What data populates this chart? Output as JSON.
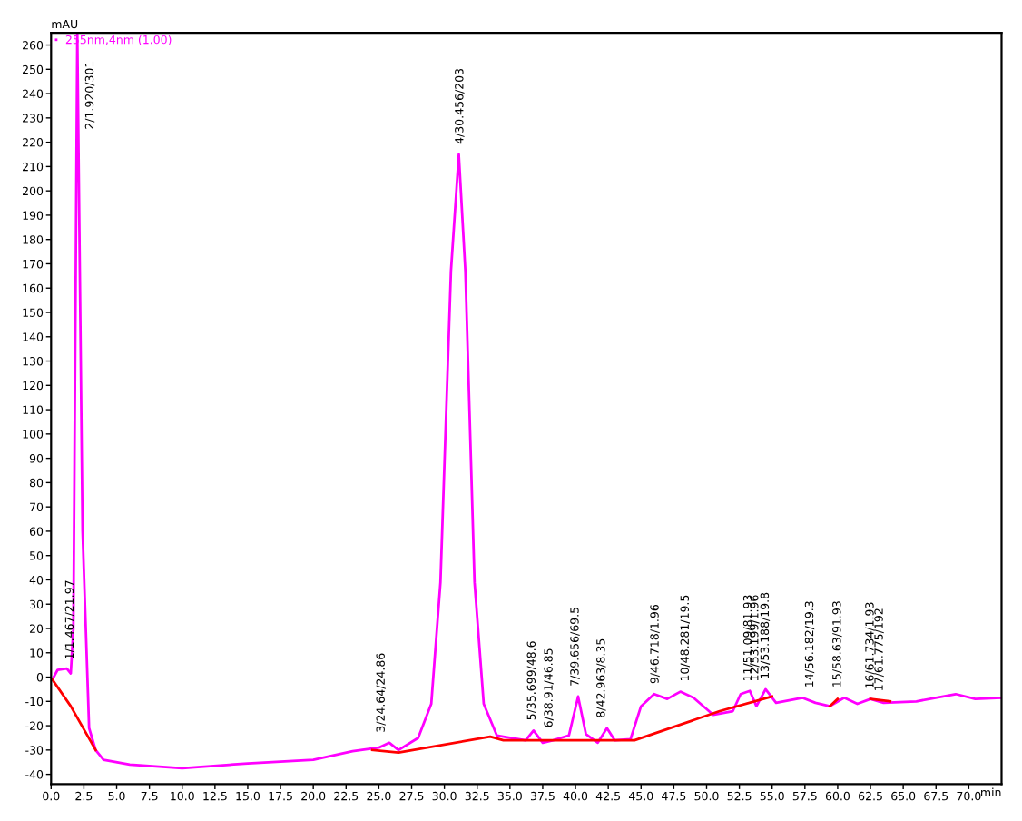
{
  "chart_data": {
    "type": "line",
    "ylabel": "mAU",
    "xlabel": "min",
    "xlim": [
      0,
      72.5
    ],
    "ylim": [
      -44,
      265
    ],
    "xticks": [
      {
        "value": 0,
        "label": "0.0"
      },
      2.5,
      {
        "value": 5,
        "label": "5.0"
      },
      7.5,
      {
        "value": 10,
        "label": "10.0"
      },
      12.5,
      {
        "value": 15,
        "label": "15.0"
      },
      17.5,
      {
        "value": 20,
        "label": "20.0"
      },
      22.5,
      {
        "value": 25,
        "label": "25.0"
      },
      27.5,
      {
        "value": 30,
        "label": "30.0"
      },
      32.5,
      {
        "value": 35,
        "label": "35.0"
      },
      37.5,
      {
        "value": 40,
        "label": "40.0"
      },
      42.5,
      {
        "value": 45,
        "label": "45.0"
      },
      47.5,
      {
        "value": 50,
        "label": "50.0"
      },
      52.5,
      {
        "value": 55,
        "label": "55.0"
      },
      57.5,
      {
        "value": 60,
        "label": "60.0"
      },
      62.5,
      {
        "value": 65,
        "label": "65.0"
      },
      67.5,
      {
        "value": 70,
        "label": "70.0"
      }
    ],
    "yticks": [
      -40,
      -30,
      -20,
      -10,
      0,
      10,
      20,
      30,
      40,
      50,
      60,
      70,
      80,
      90,
      100,
      110,
      120,
      130,
      140,
      150,
      160,
      170,
      180,
      190,
      200,
      210,
      220,
      230,
      240,
      250,
      260
    ],
    "grid": false,
    "legend": "top left",
    "series": [
      {
        "name": "255nm,4nm (1.00)",
        "color": "#ff00ff",
        "x": [
          0.1,
          0.5,
          1.2,
          1.5,
          1.7,
          2.0,
          2.4,
          2.9,
          3.4,
          4,
          6,
          10,
          15,
          20,
          23,
          25,
          25.8,
          26.5,
          28,
          29,
          29.7,
          30.5,
          31.1,
          31.6,
          32.3,
          33,
          34,
          35,
          36.2,
          36.8,
          37.5,
          38.3,
          39.5,
          40.2,
          40.8,
          41.7,
          42.4,
          43,
          44.2,
          45,
          46,
          47,
          48,
          49,
          50.5,
          52,
          52.6,
          53.3,
          53.8,
          54.5,
          55.3,
          57.3,
          58.3,
          59.4,
          60.5,
          61.5,
          62.5,
          63.5,
          66,
          69,
          70.5,
          72.5
        ],
        "values": [
          -1,
          3,
          3.5,
          1.5,
          20,
          265,
          60,
          -21,
          -30,
          -34,
          -36,
          -37.5,
          -35.5,
          -34,
          -30.5,
          -29,
          -27,
          -30,
          -25,
          -11,
          39,
          167,
          215,
          167,
          39,
          -11,
          -24,
          -25,
          -26,
          -22,
          -27,
          -26,
          -24,
          -8,
          -23.5,
          -27,
          -21,
          -26,
          -25.5,
          -12,
          -7,
          -9,
          -6,
          -8.5,
          -15.5,
          -14,
          -7,
          -5.7,
          -12,
          -5,
          -10.6,
          -8.5,
          -10.6,
          -12,
          -8.5,
          -11,
          -9,
          -10.6,
          -10,
          -7,
          -9,
          -8.5
        ]
      },
      {
        "color": "#ff0000",
        "x": [
          0.1,
          1.5,
          3.4,
          3.5,
          24.5,
          26.5,
          33.5,
          34.5,
          44.5,
          51,
          55,
          55.5,
          59.4,
          60,
          61.5,
          62.5,
          64
        ],
        "values": [
          -1,
          -12,
          -30,
          null,
          -30,
          -31,
          -24.5,
          -26,
          -26,
          -14,
          -8,
          null,
          -12,
          -9,
          null,
          -9,
          -10
        ]
      }
    ],
    "annotations": [
      {
        "text": "1/1.467/21.97",
        "x": 1.47,
        "y": 3
      },
      {
        "text": "2/1.920/301",
        "x": 2.0,
        "y": 265
      },
      {
        "text": "3/24.64/24.86",
        "x": 25.2,
        "y": -27
      },
      {
        "text": "4/30.456/203",
        "x": 31.2,
        "y": 215
      },
      {
        "text": "5/35.699/48.6",
        "x": 36.7,
        "y": -22
      },
      {
        "text": "6/38.91/46.85",
        "x": 38.0,
        "y": -25
      },
      {
        "text": "7/39.656/69.5",
        "x": 40.0,
        "y": -8
      },
      {
        "text": "8/42.963/8.35",
        "x": 42.0,
        "y": -21
      },
      {
        "text": "9/46.718/1.96",
        "x": 46.1,
        "y": -7
      },
      {
        "text": "10/48.281/19.5",
        "x": 48.4,
        "y": -6
      },
      {
        "text": "11/51.09/81.93",
        "x": 53.2,
        "y": -6
      },
      {
        "text": "12/53.199/1.96",
        "x": 53.7,
        "y": -6
      },
      {
        "text": "13/53.188/19.8",
        "x": 54.5,
        "y": -5
      },
      {
        "text": "14/56.182/19.3",
        "x": 57.9,
        "y": -8.5
      },
      {
        "text": "15/58.63/91.93",
        "x": 60.0,
        "y": -8.5
      },
      {
        "text": "16/61.734/1.93",
        "x": 62.5,
        "y": -9
      },
      {
        "text": "17/61.775/192",
        "x": 63.2,
        "y": -10
      }
    ]
  }
}
